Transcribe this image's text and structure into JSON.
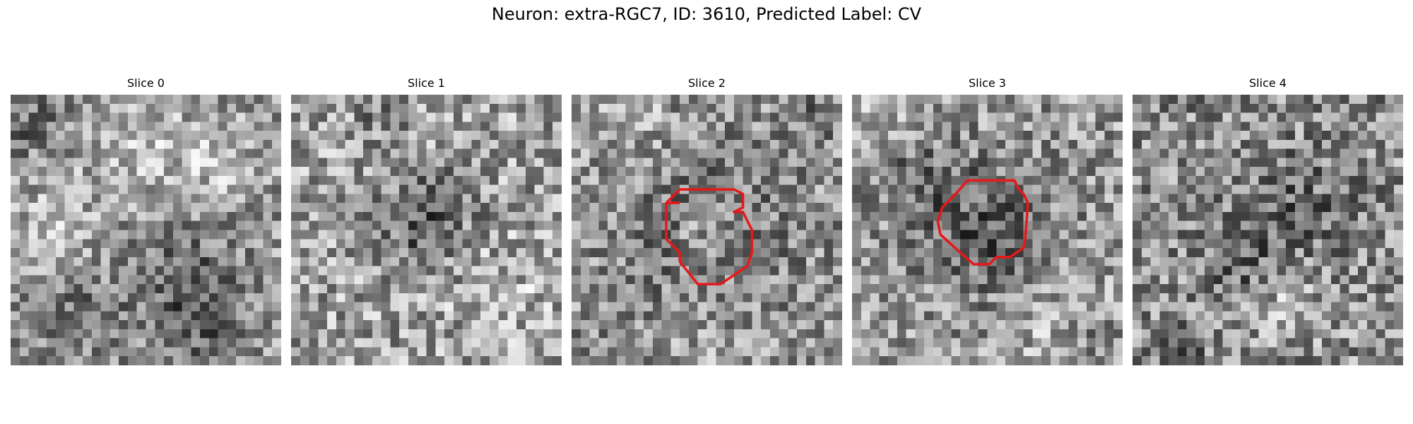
{
  "figure": {
    "title": "Neuron: extra-RGC7, ID: 3610, Predicted Label: CV"
  },
  "colors": {
    "contour": "#e41a1c",
    "background": "#ffffff"
  },
  "slices": [
    {
      "label": "Slice 0",
      "has_contour": false
    },
    {
      "label": "Slice 1",
      "has_contour": false
    },
    {
      "label": "Slice 2",
      "has_contour": true
    },
    {
      "label": "Slice 3",
      "has_contour": true
    },
    {
      "label": "Slice 4",
      "has_contour": false
    }
  ]
}
